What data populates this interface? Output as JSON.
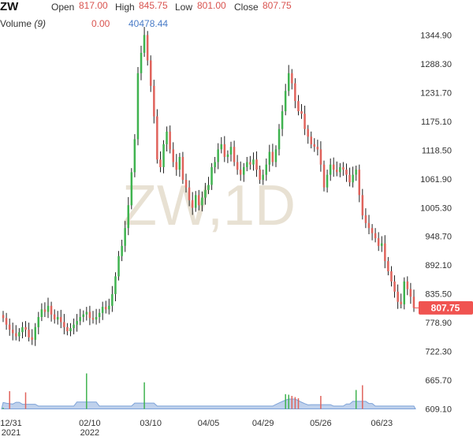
{
  "header": {
    "symbol": "ZW",
    "open_label": "Open",
    "open_value": "817.00",
    "high_label": "High",
    "high_value": "845.75",
    "low_label": "Low",
    "low_value": "801.00",
    "close_label": "Close",
    "close_value": "807.75",
    "volume_label": "Volume",
    "volume_period": "(9)",
    "volume_value_1": "0.00",
    "volume_value_2": "40478.44"
  },
  "watermark": "ZW,1D",
  "last_price_tag": "807.75",
  "colors": {
    "up": "#3fb34f",
    "down": "#e0635c",
    "volume_area": "#a9c2e6",
    "price_tag": "#f05350",
    "grid": "#ffffff",
    "axis_text": "#333333"
  },
  "chart_data": {
    "type": "candlestick",
    "interval": "1D",
    "y_ticks": [
      1344.9,
      1288.3,
      1231.7,
      1175.1,
      1118.5,
      1061.9,
      1005.3,
      948.7,
      892.1,
      835.5,
      778.9,
      722.3,
      665.7,
      609.1
    ],
    "y_tick_labels": [
      "1344.90",
      "1288.30",
      "1231.70",
      "1175.10",
      "1118.50",
      "1061.90",
      "1005.30",
      "948.70",
      "892.10",
      "835.50",
      "778.90",
      "722.30",
      "665.70",
      "609.10"
    ],
    "x_tick_labels": [
      {
        "label": "12/31",
        "sub": "2021",
        "index": 0
      },
      {
        "label": "02/10",
        "sub": "2022",
        "index": 27
      },
      {
        "label": "03/10",
        "sub": "",
        "index": 46
      },
      {
        "label": "04/05",
        "sub": "",
        "index": 64
      },
      {
        "label": "04/29",
        "sub": "",
        "index": 81
      },
      {
        "label": "05/26",
        "sub": "",
        "index": 99
      },
      {
        "label": "06/23",
        "sub": "",
        "index": 118
      }
    ],
    "closes": [
      788,
      775,
      765,
      758,
      752,
      760,
      770,
      765,
      750,
      745,
      770,
      790,
      805,
      800,
      812,
      795,
      785,
      790,
      780,
      770,
      762,
      768,
      775,
      782,
      790,
      795,
      800,
      788,
      785,
      790,
      798,
      810,
      805,
      812,
      835,
      870,
      910,
      930,
      965,
      1010,
      1075,
      1140,
      1270,
      1310,
      1345,
      1295,
      1245,
      1185,
      1100,
      1085,
      1130,
      1155,
      1120,
      1095,
      1080,
      1105,
      1060,
      1045,
      1020,
      1005,
      1030,
      1010,
      1025,
      1040,
      1050,
      1085,
      1095,
      1120,
      1130,
      1105,
      1110,
      1125,
      1095,
      1080,
      1070,
      1085,
      1095,
      1090,
      1100,
      1080,
      1060,
      1070,
      1090,
      1115,
      1095,
      1120,
      1160,
      1195,
      1235,
      1270,
      1250,
      1215,
      1195,
      1190,
      1160,
      1145,
      1130,
      1125,
      1120,
      1090,
      1045,
      1070,
      1090,
      1080,
      1075,
      1085,
      1080,
      1070,
      1055,
      1070,
      1080,
      1030,
      990,
      975,
      965,
      955,
      945,
      930,
      935,
      900,
      880,
      860,
      840,
      820,
      815,
      860,
      845,
      830,
      808
    ],
    "volumes": [
      2,
      1,
      30,
      1,
      1,
      1,
      1,
      28,
      1,
      1,
      1,
      1,
      1,
      1,
      1,
      1,
      1,
      1,
      1,
      1,
      1,
      1,
      1,
      1,
      1,
      1,
      60,
      1,
      1,
      1,
      1,
      1,
      1,
      1,
      1,
      1,
      1,
      1,
      1,
      1,
      1,
      1,
      1,
      1,
      45,
      1,
      1,
      1,
      1,
      1,
      1,
      1,
      1,
      1,
      1,
      1,
      1,
      1,
      1,
      1,
      1,
      1,
      1,
      1,
      1,
      1,
      1,
      1,
      1,
      1,
      1,
      1,
      1,
      1,
      1,
      1,
      1,
      1,
      1,
      1,
      1,
      1,
      1,
      1,
      1,
      1,
      1,
      1,
      25,
      24,
      22,
      20,
      18,
      1,
      1,
      1,
      1,
      1,
      1,
      22,
      1,
      1,
      1,
      1,
      1,
      1,
      1,
      1,
      1,
      1,
      32,
      1,
      40,
      1,
      1,
      1,
      1,
      1,
      1,
      1,
      1,
      1,
      1,
      1,
      1,
      1,
      1,
      1,
      1,
      1
    ]
  }
}
